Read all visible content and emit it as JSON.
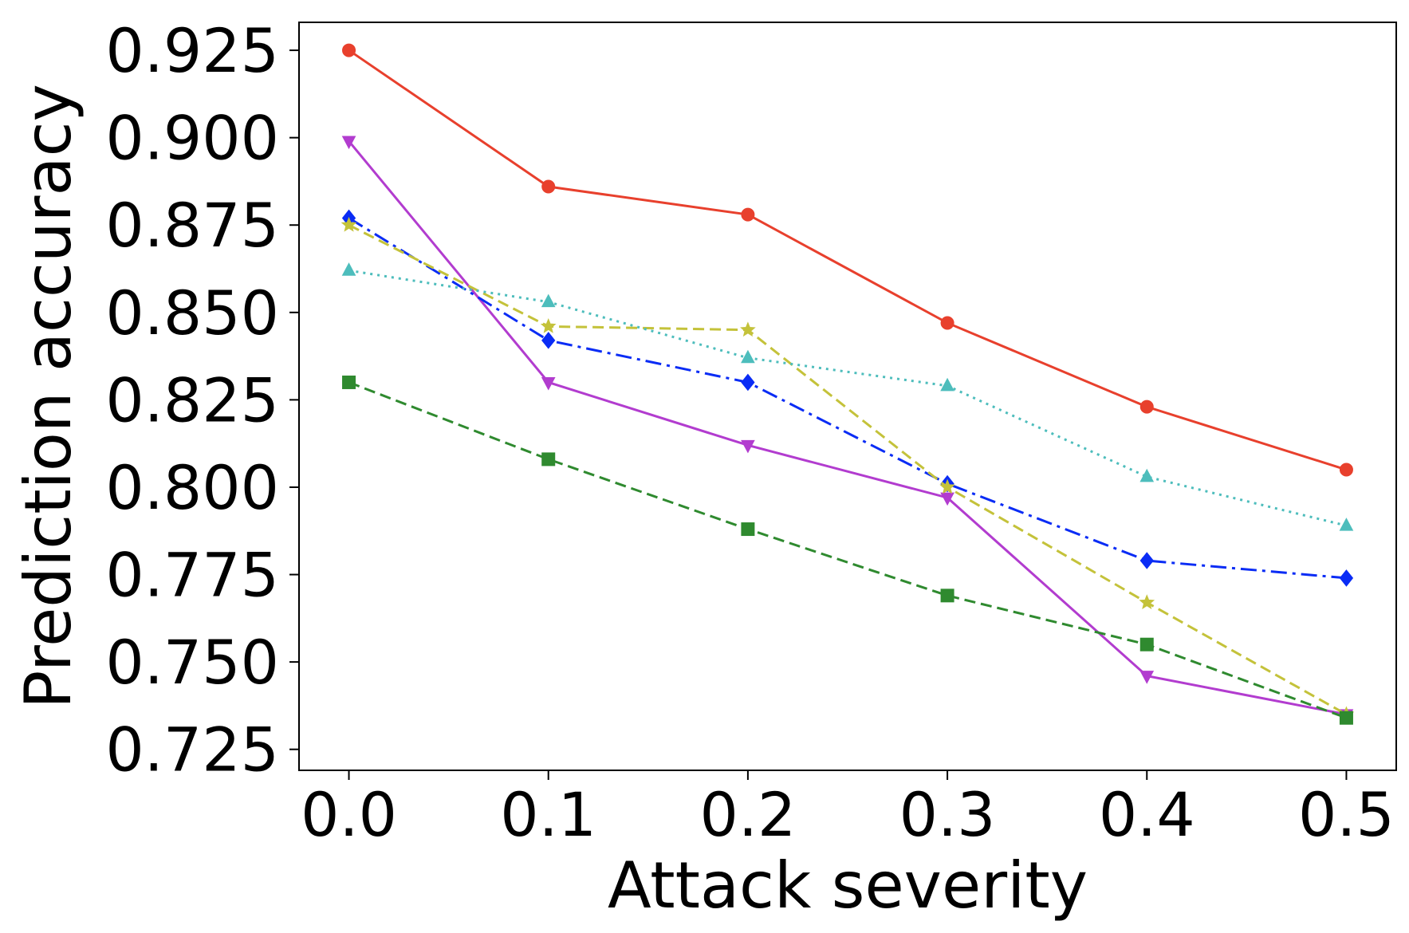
{
  "chart_data": {
    "type": "line",
    "title": "",
    "xlabel": "Attack severity",
    "ylabel": "Prediction accuracy",
    "x": [
      0.0,
      0.1,
      0.2,
      0.3,
      0.4,
      0.5
    ],
    "xlim": [
      -0.025,
      0.525
    ],
    "ylim": [
      0.719,
      0.933
    ],
    "xticks": [
      "0.0",
      "0.1",
      "0.2",
      "0.3",
      "0.4",
      "0.5"
    ],
    "yticks": [
      "0.725",
      "0.750",
      "0.775",
      "0.800",
      "0.825",
      "0.850",
      "0.875",
      "0.900",
      "0.925"
    ],
    "grid": false,
    "series": [
      {
        "name": "red-circle-solid",
        "color": "#e8402d",
        "marker": "circle",
        "linestyle": "solid",
        "values": [
          0.925,
          0.886,
          0.878,
          0.847,
          0.823,
          0.805
        ]
      },
      {
        "name": "purple-triangle-down-solid",
        "color": "#b23ccf",
        "marker": "triangle-down",
        "linestyle": "solid",
        "values": [
          0.899,
          0.83,
          0.812,
          0.797,
          0.746,
          0.735
        ]
      },
      {
        "name": "blue-diamond-dashdot",
        "color": "#0a2cf5",
        "marker": "diamond",
        "linestyle": "dashdot",
        "values": [
          0.877,
          0.842,
          0.83,
          0.801,
          0.779,
          0.774
        ]
      },
      {
        "name": "olive-star-dashed",
        "color": "#c4c23a",
        "marker": "star",
        "linestyle": "dashed",
        "values": [
          0.875,
          0.846,
          0.845,
          0.8,
          0.767,
          0.735
        ]
      },
      {
        "name": "cyan-triangle-up-dotted",
        "color": "#4dbdbc",
        "marker": "triangle-up",
        "linestyle": "dotted",
        "values": [
          0.862,
          0.853,
          0.837,
          0.829,
          0.803,
          0.789
        ]
      },
      {
        "name": "green-square-dashed",
        "color": "#2f8a2f",
        "marker": "square",
        "linestyle": "dashed",
        "values": [
          0.83,
          0.808,
          0.788,
          0.769,
          0.755,
          0.734
        ]
      }
    ]
  }
}
